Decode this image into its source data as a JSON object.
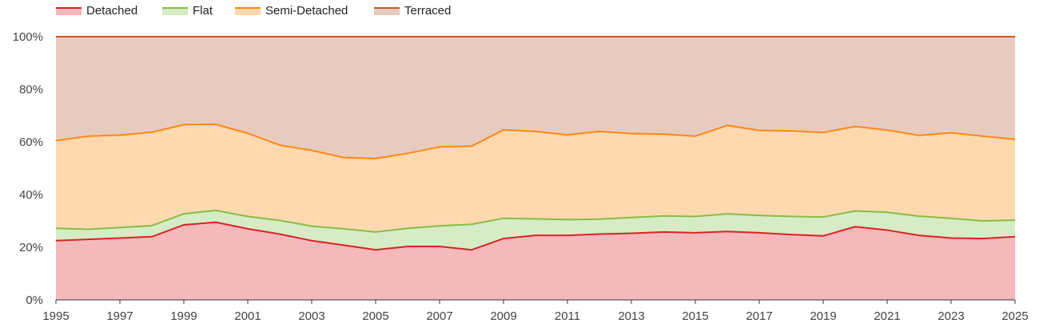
{
  "chart_data": {
    "type": "area",
    "stacked": true,
    "percent_stacked": true,
    "x": [
      1995,
      1996,
      1997,
      1998,
      1999,
      2000,
      2001,
      2002,
      2003,
      2004,
      2005,
      2006,
      2007,
      2008,
      2009,
      2010,
      2011,
      2012,
      2013,
      2014,
      2015,
      2016,
      2017,
      2018,
      2019,
      2020,
      2021,
      2022,
      2023,
      2024,
      2025
    ],
    "x_tick_labels": [
      "1995",
      "1997",
      "1999",
      "2001",
      "2003",
      "2005",
      "2007",
      "2009",
      "2011",
      "2013",
      "2015",
      "2017",
      "2019",
      "2021",
      "2023",
      "2025"
    ],
    "y_tick_labels": [
      "0%",
      "20%",
      "40%",
      "60%",
      "80%",
      "100%"
    ],
    "ylim": [
      0,
      100
    ],
    "grid": true,
    "legend_position": "top-left",
    "series": [
      {
        "name": "Detached",
        "line_color": "#dd2222",
        "fill_color": "#f5b9bc",
        "values": [
          22.5,
          23,
          23.5,
          24,
          28.5,
          29.5,
          27,
          25,
          22.5,
          20.8,
          19,
          20.3,
          20.3,
          19,
          23.3,
          24.5,
          24.5,
          25,
          25.3,
          25.8,
          25.5,
          26,
          25.5,
          24.8,
          24.3,
          27.8,
          26.5,
          24.5,
          23.5,
          23.3,
          24
        ]
      },
      {
        "name": "Flat",
        "line_color": "#88bb44",
        "fill_color": "#d6ecc6",
        "values": [
          4.7,
          3.8,
          4,
          4.2,
          4.2,
          4.5,
          4.7,
          5.2,
          5.5,
          6.2,
          6.8,
          6.9,
          7.8,
          9.7,
          7.7,
          6.3,
          6,
          5.7,
          6,
          6.1,
          6.2,
          6.7,
          6.6,
          6.9,
          7.2,
          6,
          6.8,
          7.3,
          7.5,
          6.7,
          6.3
        ]
      },
      {
        "name": "Semi-Detached",
        "line_color": "#ff8811",
        "fill_color": "#fed9b0",
        "values": [
          33.3,
          35.4,
          35.1,
          35.5,
          33.9,
          32.7,
          31.6,
          28.6,
          28.8,
          27.1,
          27.9,
          28.5,
          30,
          29.7,
          33.6,
          33.2,
          32.2,
          33.3,
          31.9,
          31.1,
          30.5,
          33.6,
          32.3,
          32.5,
          32.1,
          32.1,
          31.2,
          30.7,
          32.5,
          32.2,
          30.7
        ]
      },
      {
        "name": "Terraced",
        "line_color": "#cc5522",
        "fill_color": "#e8cbbf",
        "values": [
          39.5,
          37.8,
          37.4,
          36.3,
          33.4,
          33.3,
          36.7,
          41.2,
          43.2,
          45.9,
          46.3,
          44.3,
          41.9,
          41.6,
          35.4,
          36,
          37.3,
          36,
          36.8,
          37,
          37.8,
          33.7,
          35.6,
          35.8,
          36.4,
          34.1,
          35.5,
          37.5,
          36.5,
          37.8,
          39
        ]
      }
    ]
  }
}
